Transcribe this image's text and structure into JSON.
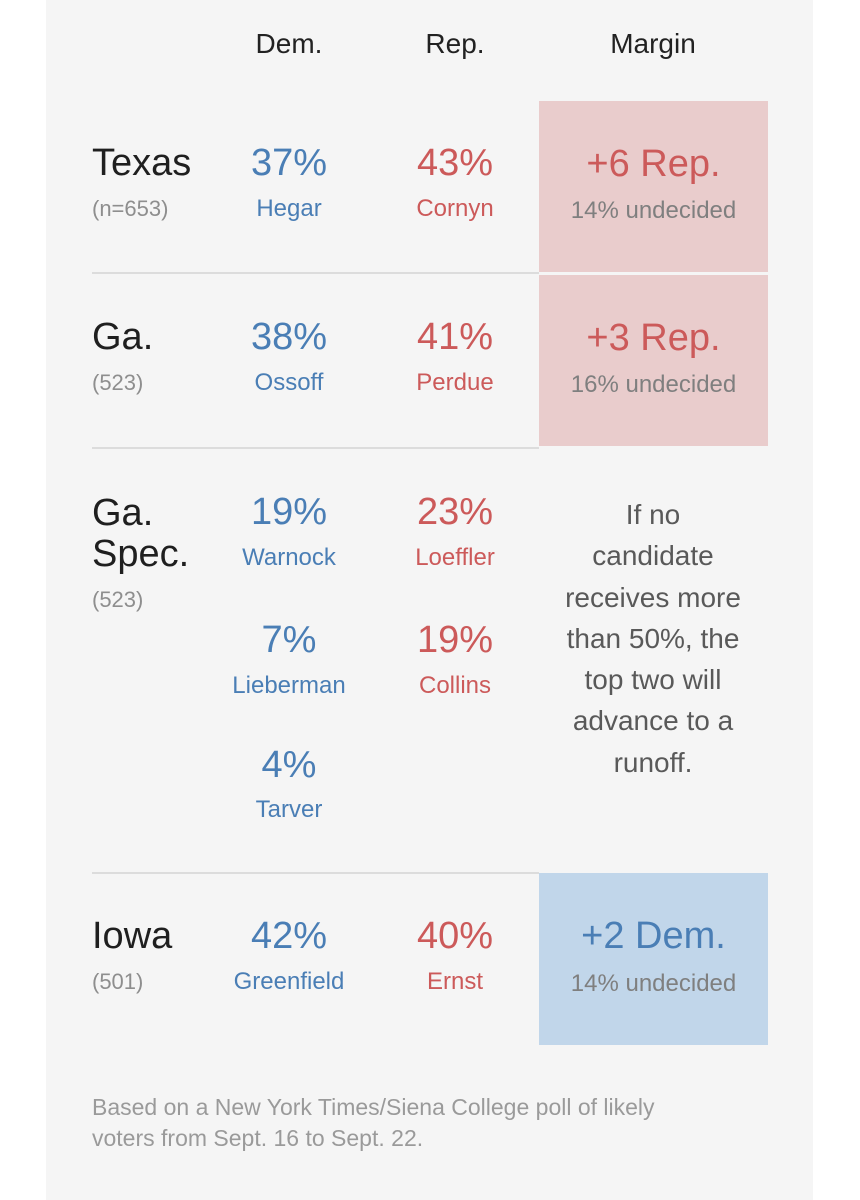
{
  "headers": {
    "dem": "Dem.",
    "rep": "Rep.",
    "margin": "Margin"
  },
  "colors": {
    "dem": "#4a7eb5",
    "rep": "#cc5a5a",
    "dem_bg": "#c1d6ea",
    "rep_bg": "#e9cccc",
    "panel_bg": "#f5f5f5"
  },
  "rows": [
    {
      "state": "Texas",
      "n": "(n=653)",
      "dem": [
        {
          "pct": "37%",
          "name": "Hegar"
        }
      ],
      "rep": [
        {
          "pct": "43%",
          "name": "Cornyn"
        }
      ],
      "margin": "+6 Rep.",
      "undecided": "14% undecided",
      "lean": "rep"
    },
    {
      "state": "Ga.",
      "n": "(523)",
      "dem": [
        {
          "pct": "38%",
          "name": "Ossoff"
        }
      ],
      "rep": [
        {
          "pct": "41%",
          "name": "Perdue"
        }
      ],
      "margin": "+3 Rep.",
      "undecided": "16% undecided",
      "lean": "rep"
    },
    {
      "state_line1": "Ga.",
      "state_line2": "Spec.",
      "n": "(523)",
      "dem": [
        {
          "pct": "19%",
          "name": "Warnock"
        },
        {
          "pct": "7%",
          "name": "Lieberman"
        },
        {
          "pct": "4%",
          "name": "Tarver"
        }
      ],
      "rep": [
        {
          "pct": "23%",
          "name": "Loeffler"
        },
        {
          "pct": "19%",
          "name": "Collins"
        }
      ],
      "note_lines": [
        "If no",
        "candidate",
        "receives more",
        "than 50%, the",
        "top two will",
        "advance to a",
        "runoff."
      ]
    },
    {
      "state": "Iowa",
      "n": "(501)",
      "dem": [
        {
          "pct": "42%",
          "name": "Greenfield"
        }
      ],
      "rep": [
        {
          "pct": "40%",
          "name": "Ernst"
        }
      ],
      "margin": "+2 Dem.",
      "undecided": "14% undecided",
      "lean": "dem"
    }
  ],
  "footer_lines": [
    "Based on a New York Times/Siena College poll of likely",
    "voters from Sept. 16 to Sept. 22."
  ]
}
